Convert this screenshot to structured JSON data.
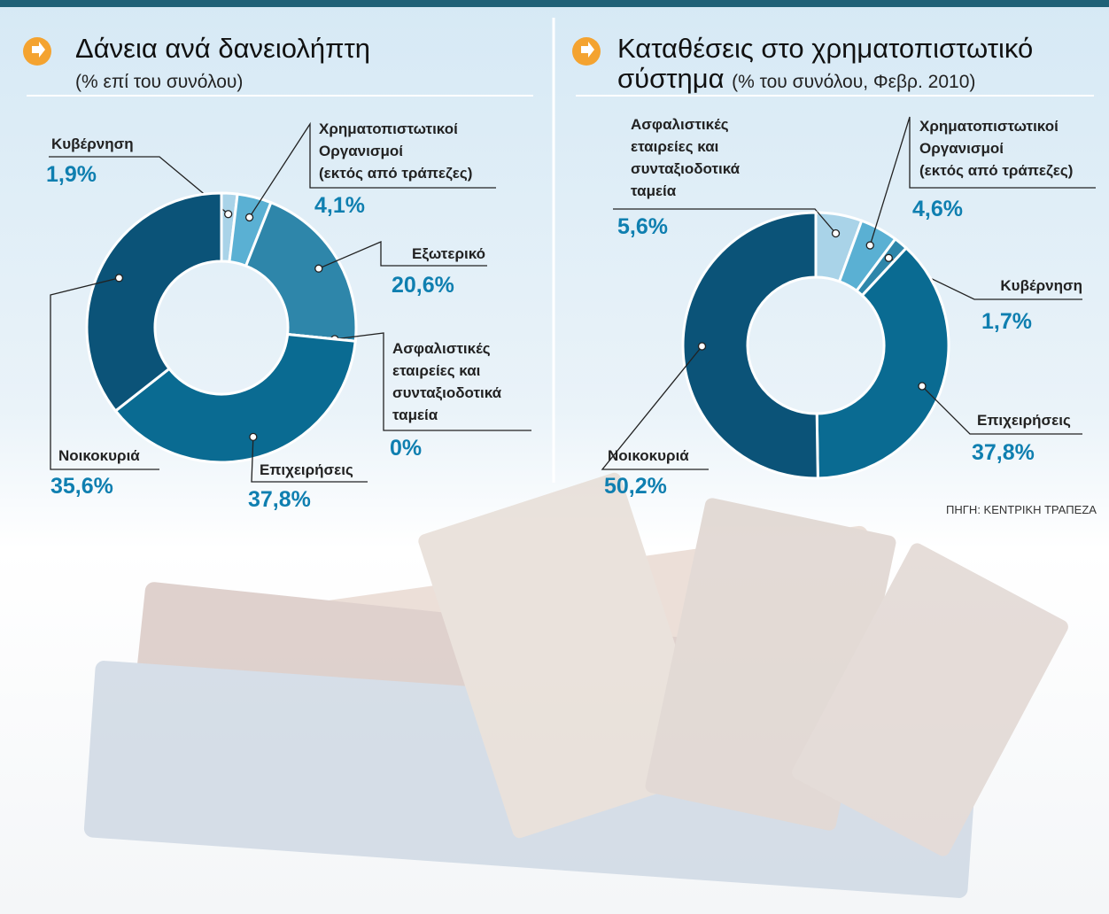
{
  "chart_data": [
    {
      "type": "donut",
      "title": "Δάνεια ανά δανειολήπτη",
      "subtitle": "(% επί του συνόλου)",
      "categories": [
        "Κυβέρνηση",
        "Χρηματοπιστωτικοί\nΟργανισμοί\n(εκτός από τράπεζες)",
        "Εξωτερικό",
        "Ασφαλιστικές\nεταιρείες και\nσυνταξιοδοτικά\nταμεία",
        "Επιχειρήσεις",
        "Νοικοκυριά"
      ],
      "values": [
        1.9,
        4.1,
        20.6,
        0,
        37.8,
        35.6
      ],
      "value_labels": [
        "1,9%",
        "4,1%",
        "20,6%",
        "0%",
        "37,8%",
        "35,6%"
      ],
      "colors": [
        "#a9d3e8",
        "#5ab0d3",
        "#2e86aa",
        "#d9ecf5",
        "#0a6b92",
        "#0b5378"
      ]
    },
    {
      "type": "donut",
      "title": "Καταθέσεις στο χρηματοπιστωτικό σύστημα",
      "subtitle": "(% του συνόλου, Φεβρ. 2010)",
      "categories": [
        "Ασφαλιστικές\nεταιρείες και\nσυνταξιοδοτικά\nταμεία",
        "Χρηματοπιστωτικοί\nΟργανισμοί\n(εκτός από τράπεζες)",
        "Κυβέρνηση",
        "Επιχειρήσεις",
        "Νοικοκυριά"
      ],
      "values": [
        5.6,
        4.6,
        1.7,
        37.8,
        50.2
      ],
      "value_labels": [
        "5,6%",
        "4,6%",
        "1,7%",
        "37,8%",
        "50,2%"
      ],
      "colors": [
        "#a9d3e8",
        "#5ab0d3",
        "#2e86aa",
        "#0a6b92",
        "#0b5378"
      ]
    }
  ],
  "source": "ΠΗΓΗ: ΚΕΝΤΡΙΚΗ ΤΡΑΠΕΖΑ"
}
